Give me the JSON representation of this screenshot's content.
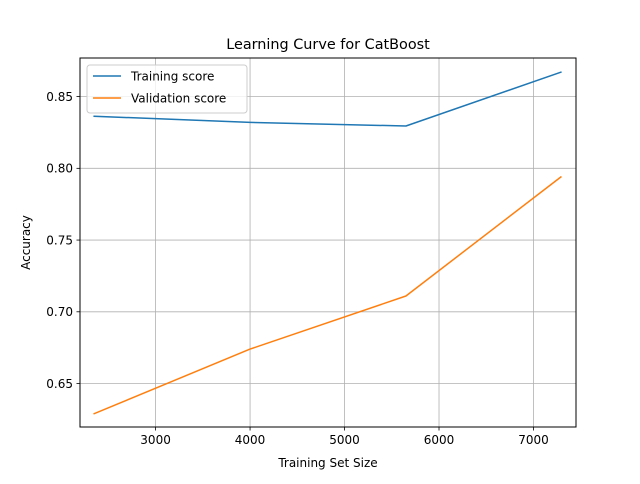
{
  "chart_data": {
    "type": "line",
    "title": "Learning Curve for CatBoost",
    "xlabel": "Training Set Size",
    "ylabel": "Accuracy",
    "xlim": [
      2200,
      7450
    ],
    "ylim": [
      0.6197,
      0.8769
    ],
    "xticks": [
      3000,
      4000,
      5000,
      6000,
      7000
    ],
    "yticks": [
      0.65,
      0.7,
      0.75,
      0.8,
      0.85
    ],
    "xtick_labels": [
      "3000",
      "4000",
      "5000",
      "6000",
      "7000"
    ],
    "ytick_labels": [
      "0.65",
      "0.70",
      "0.75",
      "0.80",
      "0.85"
    ],
    "grid": true,
    "legend_position": "upper-left",
    "series": [
      {
        "name": "Training score",
        "color": "#1f77b4",
        "x": [
          2350,
          4000,
          5650,
          7290
        ],
        "y": [
          0.8363,
          0.832,
          0.8295,
          0.867
        ]
      },
      {
        "name": "Validation score",
        "color": "#ff7f0e",
        "x": [
          2350,
          4000,
          5650,
          7290
        ],
        "y": [
          0.629,
          0.674,
          0.711,
          0.794
        ]
      }
    ]
  }
}
